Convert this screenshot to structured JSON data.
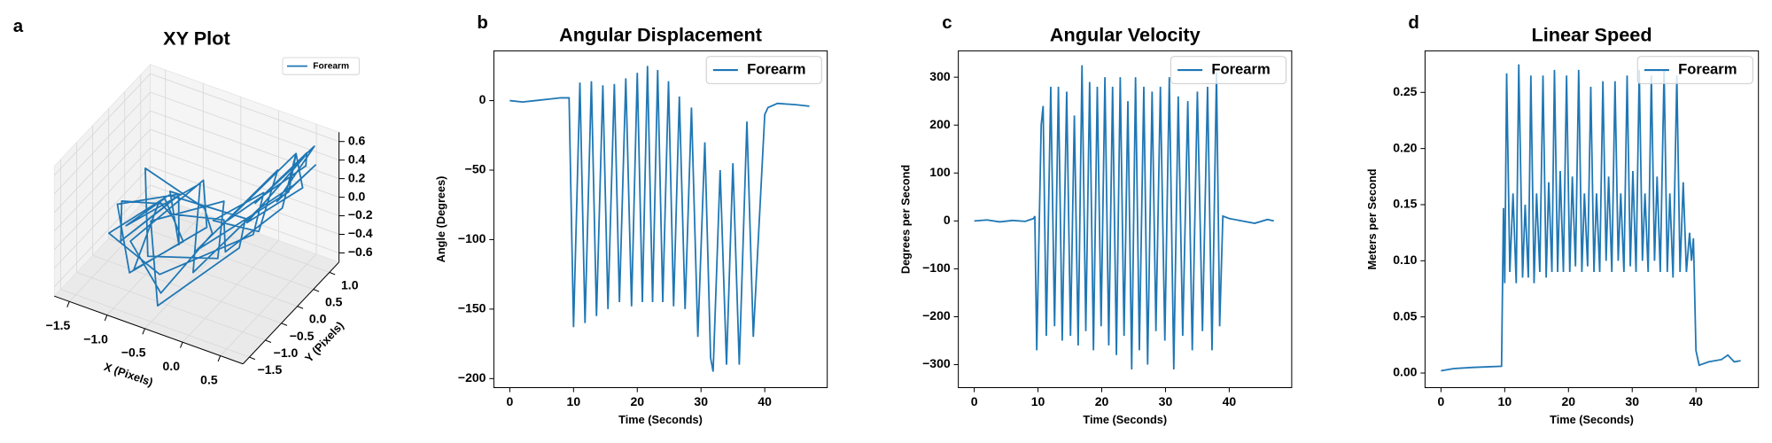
{
  "chart_data": [
    {
      "type": "line3d",
      "panel_label": "a",
      "title": "XY Plot",
      "x_label": "X (Pixels)",
      "y_label": "Y (Pixels)",
      "xlim": [
        -1.7,
        0.8
      ],
      "ylim": [
        -1.7,
        1.3
      ],
      "zlim": [
        -0.7,
        0.7
      ],
      "xticks": [
        {
          "value": -1.5,
          "label": "−1.5"
        },
        {
          "value": -1.0,
          "label": "−1.0"
        },
        {
          "value": -0.5,
          "label": "−0.5"
        },
        {
          "value": 0,
          "label": "0.0"
        },
        0.5
      ],
      "yticks": [
        {
          "value": -1.5,
          "label": "−1.5"
        },
        {
          "value": -1.0,
          "label": "−1.0"
        },
        {
          "value": -0.5,
          "label": "−0.5"
        },
        {
          "value": 0,
          "label": "0.0"
        },
        0.5,
        {
          "value": 1,
          "label": "1.0"
        }
      ],
      "zticks": [
        {
          "value": -0.6,
          "label": "−0.6"
        },
        {
          "value": -0.4,
          "label": "−0.4"
        },
        {
          "value": -0.2,
          "label": "−0.2"
        },
        {
          "value": 0,
          "label": "0.0"
        },
        0.2,
        0.4,
        0.6
      ],
      "grid": true,
      "legend": "upper right",
      "series": [
        {
          "name": "Forearm",
          "color": "#1f77b4",
          "x": [
            -1.2,
            -1.4,
            -1.0,
            -1.3,
            -0.8,
            -1.1,
            -0.6,
            -0.9,
            -1.5,
            -1.0,
            -0.4,
            -0.7,
            -1.2,
            -0.5,
            -0.2,
            -0.6,
            -1.3,
            -0.8,
            0.0,
            -0.3,
            -1.1,
            -0.5,
            0.2,
            -0.1,
            -0.9,
            -1.4,
            -0.6,
            0.3,
            0.1,
            -0.4,
            0.5,
            0.2,
            -0.2,
            0.6,
            0.4,
            0.0,
            0.7,
            0.5,
            0.2,
            0.6,
            0.3,
            0.7,
            0.4,
            0.6,
            0.1,
            -0.3,
            -0.8,
            -1.2,
            -0.9,
            -0.5,
            -1.0,
            -1.3,
            -0.7,
            -0.2,
            0.2,
            0.5,
            0.7,
            0.4,
            0.6,
            0.3
          ],
          "y": [
            -0.8,
            -0.3,
            0.2,
            -0.6,
            0.1,
            0.5,
            -0.4,
            0.3,
            -0.2,
            -1.0,
            0.0,
            0.6,
            -0.5,
            -1.2,
            -0.3,
            0.4,
            0.2,
            -0.9,
            -0.6,
            0.3,
            -0.1,
            -1.3,
            -0.4,
            0.5,
            0.0,
            -0.7,
            -1.0,
            -0.2,
            0.6,
            0.2,
            -0.5,
            0.8,
            -0.8,
            0.2,
            0.9,
            -0.3,
            0.5,
            1.0,
            0.1,
            0.7,
            -0.4,
            0.4,
            0.9,
            0.0,
            -0.6,
            0.3,
            -0.2,
            0.4,
            -1.1,
            -0.5,
            0.1,
            -0.4,
            0.5,
            -0.9,
            0.2,
            0.6,
            0.8,
            0.3,
            1.0,
            0.5
          ],
          "z": [
            -0.3,
            -0.1,
            -0.2,
            -0.4,
            0.0,
            -0.2,
            -0.3,
            -0.1,
            -0.2,
            -0.5,
            -0.2,
            0.0,
            -0.4,
            -0.5,
            -0.1,
            -0.2,
            0.1,
            -0.3,
            -0.2,
            0.0,
            -0.3,
            -0.6,
            -0.1,
            -0.2,
            0.0,
            -0.3,
            -0.4,
            0.0,
            0.1,
            -0.2,
            0.2,
            0.3,
            -0.1,
            0.4,
            0.5,
            0.1,
            0.6,
            0.5,
            0.2,
            0.6,
            0.2,
            0.4,
            0.5,
            0.3,
            -0.1,
            -0.2,
            -0.1,
            -0.3,
            -0.4,
            -0.2,
            -0.1,
            -0.3,
            0.0,
            -0.3,
            0.1,
            0.3,
            0.5,
            0.2,
            0.6,
            0.3
          ]
        }
      ]
    },
    {
      "type": "line",
      "panel_label": "b",
      "title": "Angular Displacement",
      "x_label": "Time (Seconds)",
      "y_label": "Angle (Degrees)",
      "xlim": [
        -2.5,
        49.8
      ],
      "ylim": [
        -206.5,
        35.8
      ],
      "xticks": [
        0,
        10,
        20,
        30,
        40
      ],
      "yticks": [
        {
          "value": -200,
          "label": "−200"
        },
        {
          "value": -150,
          "label": "−150"
        },
        {
          "value": -100,
          "label": "−100"
        },
        {
          "value": -50,
          "label": "−50"
        },
        0
      ],
      "legend": "upper right",
      "series": [
        {
          "name": "Forearm",
          "color": "#1f77b4",
          "x": [
            0,
            2,
            4,
            6,
            8,
            9.3,
            10.0,
            11.0,
            11.8,
            12.8,
            13.6,
            14.6,
            15.4,
            16.4,
            17.2,
            18.2,
            19.1,
            20.0,
            20.8,
            21.6,
            22.4,
            23.2,
            24.0,
            24.9,
            25.7,
            26.6,
            27.5,
            28.5,
            29.5,
            30.6,
            31.5,
            31.9,
            33.0,
            34.0,
            35.0,
            36.0,
            37.2,
            38.2,
            40.0,
            40.5,
            42,
            45,
            47
          ],
          "values": [
            0,
            -1,
            0,
            1,
            2,
            2,
            -163,
            13,
            -160,
            14,
            -155,
            11,
            -150,
            12,
            -145,
            16,
            -148,
            20,
            -145,
            25,
            -145,
            22,
            -145,
            14,
            -148,
            3,
            -150,
            -5,
            -170,
            -30,
            -185,
            -195,
            -50,
            -190,
            -45,
            -190,
            -15,
            -170,
            -10,
            -5,
            -2,
            -3,
            -4
          ]
        }
      ]
    },
    {
      "type": "line",
      "panel_label": "c",
      "title": "Angular Velocity",
      "x_label": "Time (Seconds)",
      "y_label": "Degrees per Second",
      "xlim": [
        -2.5,
        49.8
      ],
      "ylim": [
        -348,
        355
      ],
      "xticks": [
        0,
        10,
        20,
        30,
        40
      ],
      "yticks": [
        {
          "value": -300,
          "label": "−300"
        },
        {
          "value": -200,
          "label": "−200"
        },
        {
          "value": -100,
          "label": "−100"
        },
        0,
        100,
        200,
        300
      ],
      "legend": "upper right",
      "series": [
        {
          "name": "Forearm",
          "color": "#1f77b4",
          "x": [
            0,
            2,
            4,
            6,
            8,
            9.3,
            9.5,
            9.8,
            10.5,
            10.8,
            11.3,
            12.0,
            12.6,
            13.2,
            13.8,
            14.5,
            15.1,
            15.7,
            16.3,
            16.9,
            17.5,
            18.1,
            18.7,
            19.3,
            19.9,
            20.5,
            21.1,
            21.7,
            22.3,
            22.9,
            23.5,
            24.1,
            24.7,
            25.3,
            25.9,
            26.6,
            27.2,
            27.9,
            28.5,
            29.2,
            29.9,
            30.6,
            31.3,
            32.0,
            32.7,
            33.5,
            34.2,
            35.0,
            35.8,
            36.6,
            37.3,
            38.0,
            38.5,
            39.0,
            40,
            42,
            44,
            46,
            47
          ],
          "values": [
            0,
            2,
            -2,
            1,
            -1,
            5,
            10,
            -270,
            200,
            240,
            -240,
            280,
            -220,
            280,
            -250,
            270,
            -240,
            220,
            -260,
            325,
            -230,
            290,
            -270,
            280,
            -220,
            300,
            -260,
            280,
            -280,
            300,
            -240,
            250,
            -310,
            300,
            -270,
            280,
            -300,
            270,
            -230,
            280,
            -250,
            300,
            -310,
            260,
            -240,
            250,
            -270,
            270,
            -230,
            280,
            -270,
            310,
            -220,
            10,
            5,
            0,
            -5,
            3,
            0
          ]
        }
      ]
    },
    {
      "type": "line",
      "panel_label": "d",
      "title": "Linear Speed",
      "x_label": "Time (Seconds)",
      "y_label": "Meters per Second",
      "xlim": [
        -2.5,
        49.8
      ],
      "ylim": [
        -0.013,
        0.287
      ],
      "xticks": [
        0,
        10,
        20,
        30,
        40
      ],
      "yticks": [
        {
          "value": 0,
          "label": "0.00"
        },
        {
          "value": 0.05,
          "label": "0.05"
        },
        {
          "value": 0.1,
          "label": "0.10"
        },
        {
          "value": 0.15,
          "label": "0.15"
        },
        {
          "value": 0.2,
          "label": "0.20"
        },
        {
          "value": 0.25,
          "label": "0.25"
        }
      ],
      "legend": "upper right",
      "series": [
        {
          "name": "Forearm",
          "color": "#1f77b4",
          "x": [
            0,
            2,
            5,
            9.5,
            9.8,
            10,
            10.3,
            10.8,
            11.3,
            11.8,
            12.2,
            12.8,
            13.2,
            13.7,
            14.1,
            14.6,
            15,
            15.5,
            16,
            16.5,
            16.9,
            17.4,
            17.8,
            18.3,
            18.7,
            19.2,
            19.7,
            20.2,
            20.6,
            21.1,
            21.6,
            22.1,
            22.5,
            23,
            23.5,
            24,
            24.4,
            24.9,
            25.4,
            25.9,
            26.3,
            26.8,
            27.3,
            27.8,
            28.2,
            28.7,
            29.2,
            29.7,
            30.1,
            30.6,
            31.1,
            31.6,
            32,
            32.5,
            33,
            33.5,
            33.9,
            34.4,
            35,
            35.5,
            35.9,
            36.4,
            37,
            37.5,
            38,
            38.5,
            39,
            39.3,
            39.6,
            40,
            40.5,
            42,
            44,
            45,
            46,
            47
          ],
          "values": [
            0.002,
            0.004,
            0.005,
            0.006,
            0.147,
            0.08,
            0.267,
            0.09,
            0.16,
            0.08,
            0.275,
            0.085,
            0.15,
            0.085,
            0.265,
            0.08,
            0.16,
            0.09,
            0.265,
            0.085,
            0.17,
            0.09,
            0.27,
            0.09,
            0.18,
            0.09,
            0.265,
            0.09,
            0.175,
            0.095,
            0.27,
            0.09,
            0.16,
            0.095,
            0.255,
            0.09,
            0.16,
            0.09,
            0.26,
            0.1,
            0.175,
            0.09,
            0.26,
            0.1,
            0.16,
            0.09,
            0.265,
            0.095,
            0.18,
            0.09,
            0.27,
            0.1,
            0.16,
            0.09,
            0.265,
            0.1,
            0.175,
            0.09,
            0.27,
            0.09,
            0.16,
            0.085,
            0.265,
            0.09,
            0.17,
            0.09,
            0.125,
            0.1,
            0.12,
            0.02,
            0.007,
            0.01,
            0.012,
            0.016,
            0.01,
            0.011
          ]
        }
      ]
    }
  ]
}
